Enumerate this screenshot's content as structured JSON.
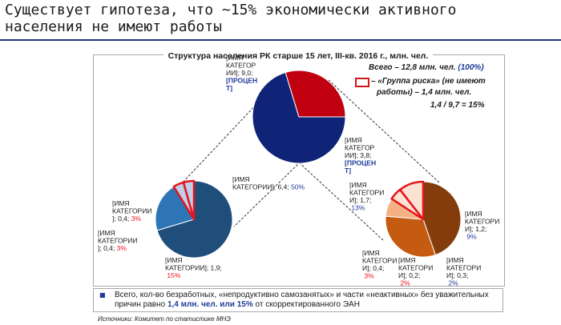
{
  "title": "Существует гипотеза, что ~15% экономически активного населения не имеют работы",
  "notes": {
    "total_prefix": "Всего – 12,8 млн. чел. ",
    "total_pct": "(100%)",
    "risk_group_line1": "– «Группа риска» (не имеют",
    "risk_group_line2": "работы) – 1,4 млн. чел.",
    "ratio": "1,4 / 9,7 = 15%"
  },
  "summary": {
    "part1": "Всего, кол-во безработных, «непродуктивно самозанятых» и части «неактивных» без уважительных причин равно ",
    "bold": "1,4 млн. чел. или 15%",
    "part2": " от скорректированного ЭАН"
  },
  "source": "Источники: Комитет по статистике МНЭ",
  "colors": {
    "navy": "#0f2377",
    "red": "#c00010",
    "steel_dark": "#1f4e7a",
    "steel_mid": "#2e75b6",
    "steel_light": "#bdd0e8",
    "brown_dark": "#843c0c",
    "orange": "#c55a11",
    "peach": "#f4b183",
    "peach_light": "#fbe2d2",
    "highlight_red": "#e8141c",
    "label_pct_red": "#e8141c"
  },
  "chart_data": [
    {
      "type": "pie",
      "title": "Структура населения РК старше 15 лет, III-кв. 2016 г., млн. чел.",
      "units": "млн. чел.",
      "slices": [
        {
          "label_lines": [
            "[ИМЯ",
            "КАТЕГОР",
            "ИИ]; 9,0;"
          ],
          "pct_lines": [
            "[ПРОЦЕН",
            "Т]"
          ],
          "value": 9.0,
          "color": "#0f2377"
        },
        {
          "label_lines": [
            "[ИМЯ",
            "КАТЕГОР",
            "ИИ]; 3,8;"
          ],
          "pct_lines": [
            "[ПРОЦЕН",
            "Т]"
          ],
          "value": 3.8,
          "color": "#c00010"
        }
      ]
    },
    {
      "type": "pie",
      "slices": [
        {
          "label_lines": [
            "[ИМЯ",
            "КАТЕГОРИИ]; 6,4;"
          ],
          "pct_text": "50%",
          "value": 6.4,
          "color": "#1f4e7a"
        },
        {
          "label_lines": [
            "[ИМЯ",
            "КАТЕГОРИИ]; 1,9;"
          ],
          "pct_text": "15%",
          "value": 1.9,
          "color": "#2e75b6"
        },
        {
          "label_lines": [
            "[ИМЯ",
            "КАТЕГОРИИ"
          ],
          "label_last": "]; 0,4;",
          "pct_text": "3%",
          "value": 0.4,
          "color": "#bdd0e8",
          "highlight": true
        },
        {
          "label_lines": [
            "[ИМЯ",
            "КАТЕГОРИИ"
          ],
          "label_last": "]; 0,4;",
          "pct_text": "3%",
          "value": 0.4,
          "color": "#bdd0e8",
          "highlight": true
        }
      ]
    },
    {
      "type": "pie",
      "slices": [
        {
          "label_lines": [
            "[ИМЯ",
            "КАТЕГОРИ",
            "И]; 1,7;"
          ],
          "pct_text": "13%",
          "value": 1.7,
          "color": "#843c0c"
        },
        {
          "label_lines": [
            "[ИМЯ",
            "КАТЕГОРИ",
            "И]; 1,2;"
          ],
          "pct_text": "9%",
          "value": 1.2,
          "color": "#c55a11"
        },
        {
          "label_lines": [
            "[ИМЯ",
            "КАТЕГОРИ",
            "И]; 0,3;"
          ],
          "pct_text": "2%",
          "value": 0.3,
          "color": "#f4b183"
        },
        {
          "label_lines": [
            "[ИМЯ",
            "КАТЕГОРИ",
            "И]; 0,2;"
          ],
          "pct_text": "2%",
          "value": 0.2,
          "color": "#fbe2d2",
          "highlight": true
        },
        {
          "label_lines": [
            "[ИМЯ",
            "КАТЕГОРИ",
            "И]; 0,4;"
          ],
          "pct_text": "3%",
          "value": 0.4,
          "color": "#fbe2d2",
          "highlight": true
        }
      ]
    }
  ]
}
